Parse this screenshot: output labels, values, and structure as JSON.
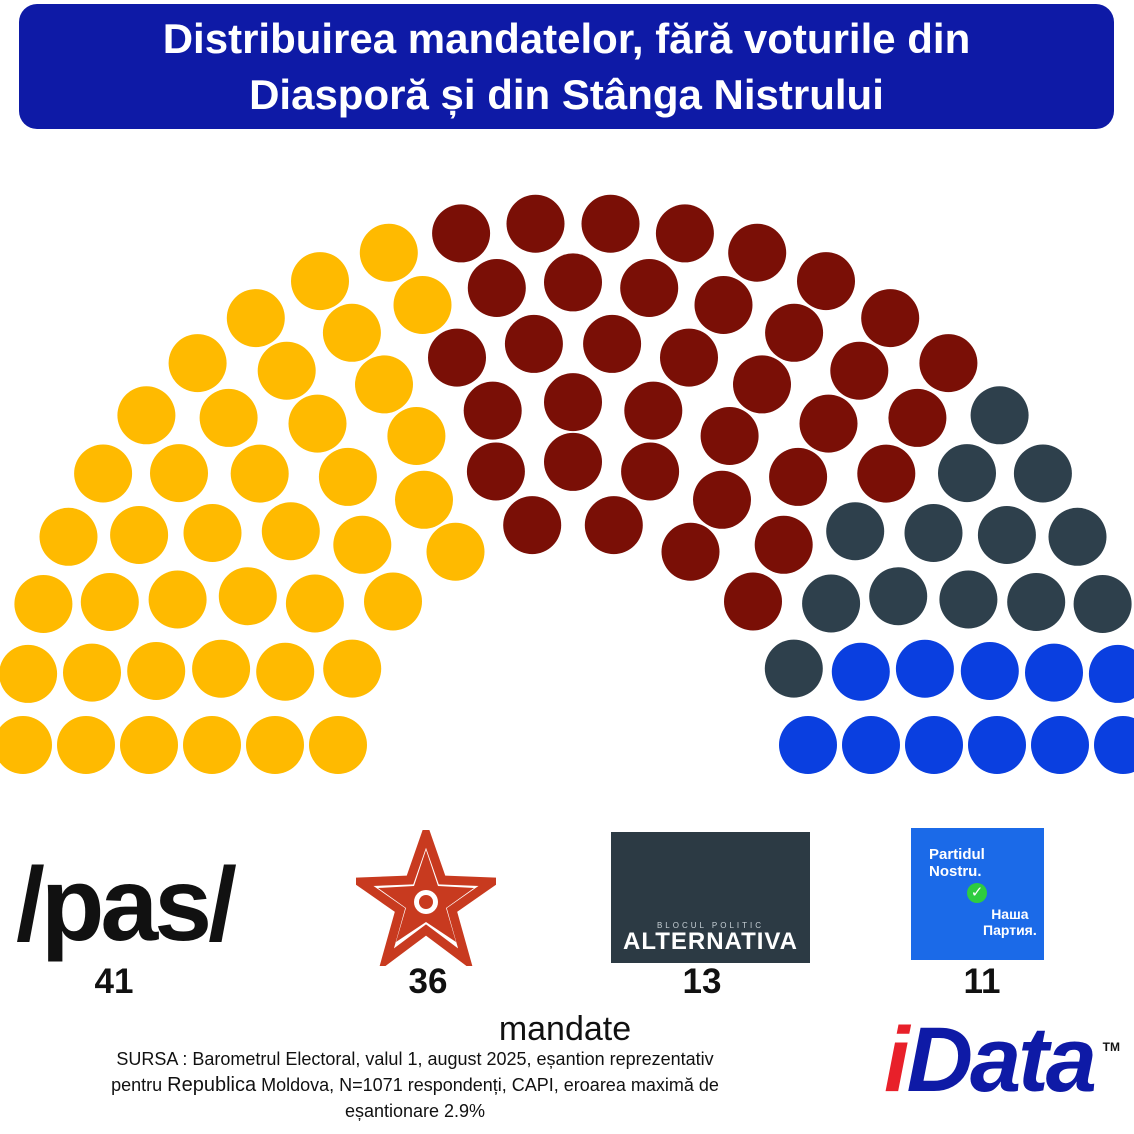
{
  "title": {
    "line1": "Distribuirea mandatelor, fără voturile din",
    "line2": "Diasporă și din Stânga Nistrului"
  },
  "chart_data": {
    "type": "parliament",
    "title": "Distribuirea mandatelor, fără voturile din Diasporă și din Stânga Nistrului",
    "total_seats": 101,
    "series": [
      {
        "name": "PAS",
        "value": 41,
        "color": "#ffba00"
      },
      {
        "name": "PSRM",
        "value": 36,
        "color": "#7a0f06"
      },
      {
        "name": "Alternativa",
        "value": 13,
        "color": "#2e404c"
      },
      {
        "name": "Partidul Nostru",
        "value": 11,
        "color": "#0a3fe0"
      }
    ],
    "unit_label": "mandate"
  },
  "logos": {
    "pas": {
      "text": "/pas/",
      "icon": "pas-logo"
    },
    "psrm": {
      "icon": "red-star-logo"
    },
    "alternativa": {
      "small_text": "BLOCUL POLITIC",
      "main_text": "ALTERNATIVA",
      "icon": "alternativa-logo"
    },
    "partidul_nostru": {
      "line1": "Partidul",
      "line2": "Nostru.",
      "line3": "Наша",
      "line4": "Партия.",
      "icon": "partidul-nostru-logo"
    },
    "idata": {
      "text_i": "i",
      "text_rest": "Data",
      "tm": "TM",
      "icon": "idata-logo"
    }
  },
  "counts": [
    "41",
    "36",
    "13",
    "11"
  ],
  "mandate_label": "mandate",
  "source": {
    "part1": "SURSA : Barometrul Electoral, valul 1, august 2025, eșantion reprezentativ",
    "part2a": "pentru ",
    "part2b": "Republica",
    "part2c": " Moldova, N=1071 respondenți, CAPI, eroarea maximă de",
    "part3": "eșantionare 2.9%"
  }
}
